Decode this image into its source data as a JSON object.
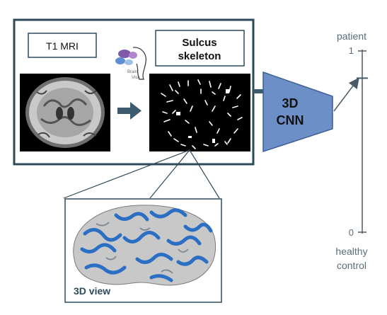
{
  "labels": {
    "t1_mri": "T1 MRI",
    "sulcus_line1": "Sulcus",
    "sulcus_line2": "skeleton",
    "brainvisa_line1": "Brain",
    "brainvisa_line2": "Visa",
    "cnn_line1": "3D",
    "cnn_line2": "CNN",
    "view_3d": "3D view",
    "scale_top_label": "patient",
    "scale_top_value": "1",
    "scale_bottom_value": "0",
    "scale_bottom_line1": "healthy",
    "scale_bottom_line2": "control"
  },
  "colors": {
    "frame": "#2e4a5a",
    "arrow": "#3d5a6e",
    "cnn_fill": "#6b8fc6",
    "cnn_stroke": "#3e5f94",
    "scale_text": "#5b6c7a",
    "scale_line": "#4a5b68",
    "brain_blue": "#2a6fc4",
    "brain_grey": "#c8c8c8"
  },
  "scale": {
    "output_value": 0.85
  }
}
